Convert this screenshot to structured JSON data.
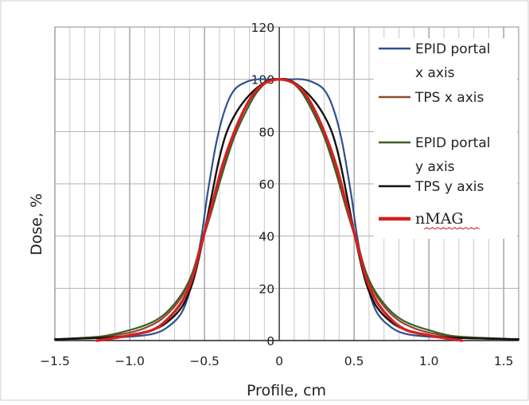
{
  "chart_data": {
    "type": "line",
    "xlabel": "Profile, cm",
    "ylabel": "Dose, %",
    "xlim": [
      -1.5,
      1.6
    ],
    "ylim": [
      0,
      120
    ],
    "x_ticks": [
      "−1.5",
      "−1.0",
      "−0.5",
      "0",
      "0.5",
      "1.0",
      "1.5"
    ],
    "y_ticks": [
      "0",
      "20",
      "40",
      "60",
      "80",
      "100",
      "120"
    ],
    "grid": true,
    "legend_position": "right",
    "series": [
      {
        "name": "EPID portal x axis",
        "color": "#2e4f8f",
        "x": [
          -1.55,
          -1.2,
          -1.0,
          -0.85,
          -0.75,
          -0.65,
          -0.58,
          -0.52,
          -0.48,
          -0.42,
          -0.36,
          -0.3,
          -0.22,
          -0.15,
          -0.08,
          0.0,
          0.08,
          0.15,
          0.22,
          0.3,
          0.36,
          0.42,
          0.48,
          0.52,
          0.58,
          0.65,
          0.75,
          0.85,
          1.0,
          1.2,
          1.6
        ],
        "y": [
          0.5,
          1,
          1.5,
          2.5,
          5,
          11,
          23,
          40,
          56,
          76,
          89,
          96,
          99,
          100,
          100,
          100,
          100,
          100,
          99,
          96,
          89,
          76,
          56,
          40,
          23,
          11,
          5,
          2.5,
          1.5,
          1,
          0.5
        ]
      },
      {
        "name": "TPS x axis",
        "color": "#8a4a2e",
        "x": [
          -1.55,
          -1.2,
          -1.0,
          -0.85,
          -0.75,
          -0.65,
          -0.58,
          -0.52,
          -0.45,
          -0.38,
          -0.3,
          -0.22,
          -0.15,
          -0.08,
          0.0,
          0.08,
          0.15,
          0.22,
          0.3,
          0.38,
          0.45,
          0.52,
          0.58,
          0.65,
          0.75,
          0.85,
          1.0,
          1.2,
          1.6
        ],
        "y": [
          0.5,
          1.5,
          3,
          6,
          10,
          17,
          26,
          38,
          52,
          66,
          80,
          90,
          96,
          99,
          100,
          99,
          96,
          89,
          79,
          65,
          52,
          38,
          26,
          17,
          10,
          6,
          3,
          1.5,
          0.5
        ]
      },
      {
        "name": "EPID portal y axis",
        "color": "#3c5e27",
        "x": [
          -1.55,
          -1.2,
          -1.0,
          -0.85,
          -0.75,
          -0.65,
          -0.58,
          -0.52,
          -0.45,
          -0.38,
          -0.3,
          -0.22,
          -0.15,
          -0.08,
          0.0,
          0.08,
          0.15,
          0.22,
          0.3,
          0.38,
          0.45,
          0.52,
          0.58,
          0.65,
          0.75,
          0.85,
          1.0,
          1.2,
          1.6
        ],
        "y": [
          0.5,
          1.5,
          4,
          7,
          11,
          18,
          26,
          37,
          50,
          64,
          78,
          88,
          95,
          99,
          100,
          99,
          95,
          88,
          78,
          64,
          50,
          37,
          26,
          18,
          11,
          7,
          4,
          1.5,
          0.5
        ]
      },
      {
        "name": "TPS y axis",
        "color": "#111111",
        "x": [
          -1.55,
          -1.2,
          -1.0,
          -0.85,
          -0.75,
          -0.65,
          -0.58,
          -0.52,
          -0.45,
          -0.4,
          -0.35,
          -0.28,
          -0.2,
          -0.12,
          -0.05,
          0.0,
          0.05,
          0.12,
          0.2,
          0.28,
          0.35,
          0.4,
          0.45,
          0.52,
          0.58,
          0.65,
          0.75,
          0.85,
          1.0,
          1.2,
          1.6
        ],
        "y": [
          0.5,
          1,
          2,
          4,
          7,
          13,
          22,
          36,
          56,
          70,
          80,
          88,
          94,
          98,
          100,
          100,
          100,
          98,
          94,
          88,
          80,
          70,
          56,
          36,
          22,
          13,
          7,
          4,
          2,
          1,
          0.5
        ]
      },
      {
        "name": "nMAG",
        "color": "#d42020",
        "x": [
          -1.22,
          -1.1,
          -1.0,
          -0.85,
          -0.75,
          -0.65,
          -0.58,
          -0.52,
          -0.45,
          -0.38,
          -0.3,
          -0.22,
          -0.15,
          -0.08,
          0.0,
          0.08,
          0.15,
          0.22,
          0.3,
          0.38,
          0.45,
          0.52,
          0.58,
          0.65,
          0.75,
          0.85,
          1.0,
          1.1,
          1.22
        ],
        "y": [
          0,
          1,
          2,
          4,
          8,
          15,
          24,
          37,
          52,
          67,
          80,
          90,
          96,
          99,
          100,
          99,
          96,
          90,
          80,
          67,
          52,
          37,
          24,
          15,
          8,
          4,
          2,
          1,
          0
        ]
      }
    ]
  },
  "legend": [
    {
      "line1": "EPID portal",
      "line2": "x axis",
      "color": "#2e4f8f"
    },
    {
      "line1": "TPS x axis",
      "line2": "",
      "color": "#8a4a2e"
    },
    {
      "line1": "EPID portal",
      "line2": "y axis",
      "color": "#3c5e27"
    },
    {
      "line1": "TPS y axis",
      "line2": "",
      "color": "#111111"
    },
    {
      "line1": "nMAG",
      "line2": "",
      "color": "#d42020"
    }
  ]
}
